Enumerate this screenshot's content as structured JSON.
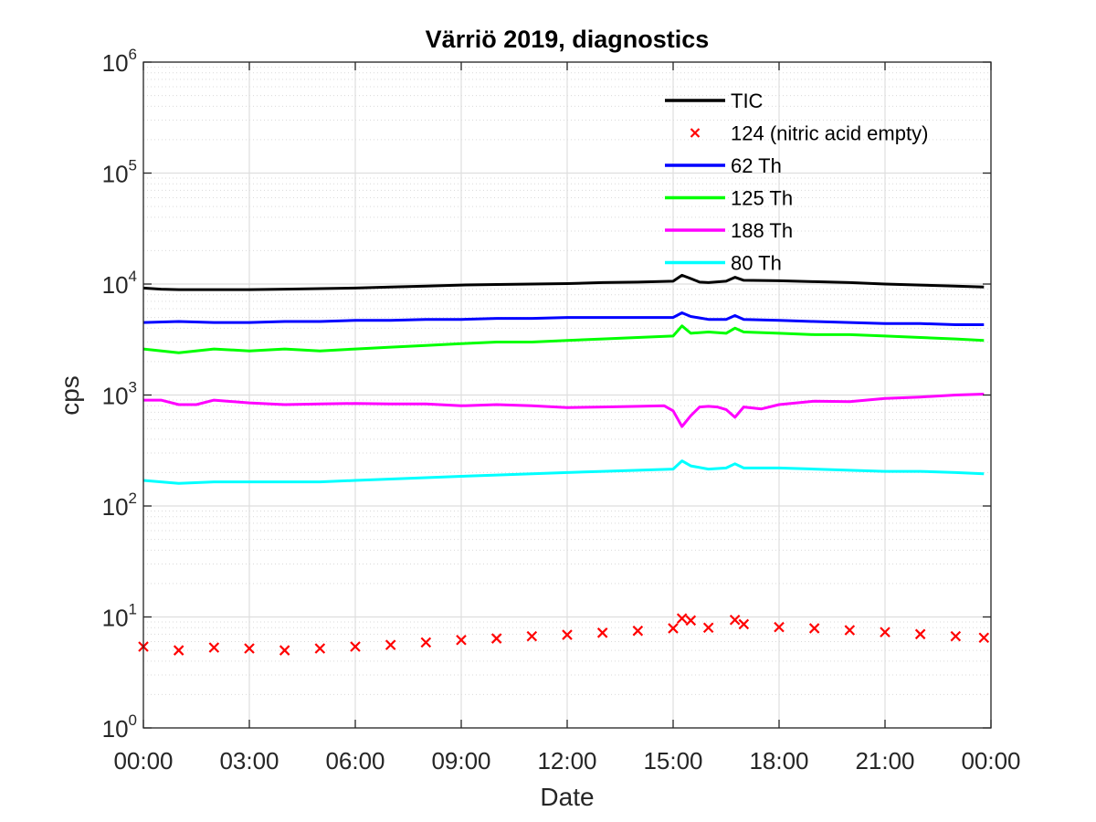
{
  "chart_data": {
    "type": "line",
    "title": "Värriö 2019, diagnostics",
    "xlabel": "Date",
    "ylabel": "cps",
    "x_ticks": [
      "00:00",
      "03:00",
      "06:00",
      "09:00",
      "12:00",
      "15:00",
      "18:00",
      "21:00",
      "00:00"
    ],
    "x_range_hours": [
      0,
      24
    ],
    "y_scale": "log",
    "ylim": [
      1,
      1000000
    ],
    "y_ticks": [
      {
        "base": "10",
        "exp": "0"
      },
      {
        "base": "10",
        "exp": "1"
      },
      {
        "base": "10",
        "exp": "2"
      },
      {
        "base": "10",
        "exp": "3"
      },
      {
        "base": "10",
        "exp": "4"
      },
      {
        "base": "10",
        "exp": "5"
      },
      {
        "base": "10",
        "exp": "6"
      }
    ],
    "grid": true,
    "minor_grid": true,
    "legend_position": "top-right",
    "series": [
      {
        "name": "TIC",
        "color": "#000000",
        "style": "line",
        "x": [
          0,
          0.5,
          1,
          2,
          3,
          4,
          5,
          6,
          7,
          8,
          9,
          10,
          11,
          12,
          13,
          14,
          14.5,
          15,
          15.25,
          15.5,
          15.75,
          16,
          16.5,
          16.75,
          17,
          18,
          19,
          20,
          21,
          22,
          23,
          23.8
        ],
        "y": [
          9200,
          9000,
          8900,
          8900,
          8900,
          9000,
          9100,
          9200,
          9400,
          9600,
          9800,
          9900,
          10000,
          10100,
          10300,
          10400,
          10500,
          10600,
          12000,
          11200,
          10400,
          10300,
          10600,
          11500,
          10800,
          10700,
          10500,
          10300,
          10000,
          9800,
          9600,
          9400
        ]
      },
      {
        "name": "124 (nitric acid empty)",
        "color": "#ff0000",
        "style": "marker-x",
        "x": [
          0,
          1,
          2,
          3,
          4,
          5,
          6,
          7,
          8,
          9,
          10,
          11,
          12,
          13,
          14,
          15,
          15.25,
          15.5,
          16,
          16.75,
          17,
          18,
          19,
          20,
          21,
          22,
          23,
          23.8
        ],
        "y": [
          5.4,
          5.0,
          5.3,
          5.2,
          5.0,
          5.2,
          5.4,
          5.6,
          5.9,
          6.2,
          6.4,
          6.7,
          6.9,
          7.2,
          7.5,
          7.9,
          9.7,
          9.3,
          8.0,
          9.4,
          8.6,
          8.1,
          7.9,
          7.6,
          7.3,
          7.0,
          6.7,
          6.5
        ]
      },
      {
        "name": "62 Th",
        "color": "#0000ff",
        "style": "line",
        "x": [
          0,
          1,
          2,
          3,
          4,
          5,
          6,
          7,
          8,
          9,
          10,
          11,
          12,
          13,
          14,
          15,
          15.25,
          15.5,
          16,
          16.5,
          16.75,
          17,
          18,
          19,
          20,
          21,
          22,
          23,
          23.8
        ],
        "y": [
          4500,
          4600,
          4500,
          4500,
          4600,
          4600,
          4700,
          4700,
          4800,
          4800,
          4900,
          4900,
          5000,
          5000,
          5000,
          5000,
          5500,
          5100,
          4800,
          4800,
          5200,
          4800,
          4700,
          4600,
          4500,
          4400,
          4400,
          4300,
          4300
        ]
      },
      {
        "name": "125 Th",
        "color": "#00ff00",
        "style": "line",
        "x": [
          0,
          1,
          2,
          3,
          4,
          5,
          6,
          7,
          8,
          9,
          10,
          11,
          12,
          13,
          14,
          15,
          15.25,
          15.5,
          16,
          16.5,
          16.75,
          17,
          18,
          19,
          20,
          21,
          22,
          23,
          23.8
        ],
        "y": [
          2600,
          2400,
          2600,
          2500,
          2600,
          2500,
          2600,
          2700,
          2800,
          2900,
          3000,
          3000,
          3100,
          3200,
          3300,
          3400,
          4200,
          3600,
          3700,
          3600,
          4000,
          3700,
          3600,
          3500,
          3500,
          3400,
          3300,
          3200,
          3100
        ]
      },
      {
        "name": "188 Th",
        "color": "#ff00ff",
        "style": "line",
        "x": [
          0,
          0.5,
          1,
          1.5,
          2,
          3,
          4,
          5,
          6,
          7,
          8,
          9,
          10,
          11,
          12,
          13,
          14,
          14.75,
          15,
          15.25,
          15.5,
          15.75,
          16,
          16.25,
          16.5,
          16.75,
          17,
          17.5,
          18,
          19,
          20,
          21,
          22,
          23,
          23.8
        ],
        "y": [
          900,
          900,
          820,
          820,
          900,
          850,
          820,
          830,
          840,
          830,
          830,
          800,
          820,
          800,
          770,
          780,
          790,
          800,
          720,
          520,
          650,
          780,
          790,
          780,
          740,
          630,
          780,
          750,
          820,
          880,
          870,
          930,
          960,
          1000,
          1020
        ]
      },
      {
        "name": "80 Th",
        "color": "#00ffff",
        "style": "line",
        "x": [
          0,
          1,
          2,
          3,
          4,
          5,
          6,
          7,
          8,
          9,
          10,
          11,
          12,
          13,
          14,
          15,
          15.25,
          15.5,
          16,
          16.5,
          16.75,
          17,
          18,
          19,
          20,
          21,
          22,
          23,
          23.8
        ],
        "y": [
          170,
          160,
          165,
          165,
          165,
          165,
          170,
          175,
          180,
          185,
          190,
          195,
          200,
          205,
          210,
          215,
          255,
          230,
          215,
          220,
          240,
          220,
          220,
          215,
          210,
          205,
          205,
          200,
          195
        ]
      }
    ]
  }
}
